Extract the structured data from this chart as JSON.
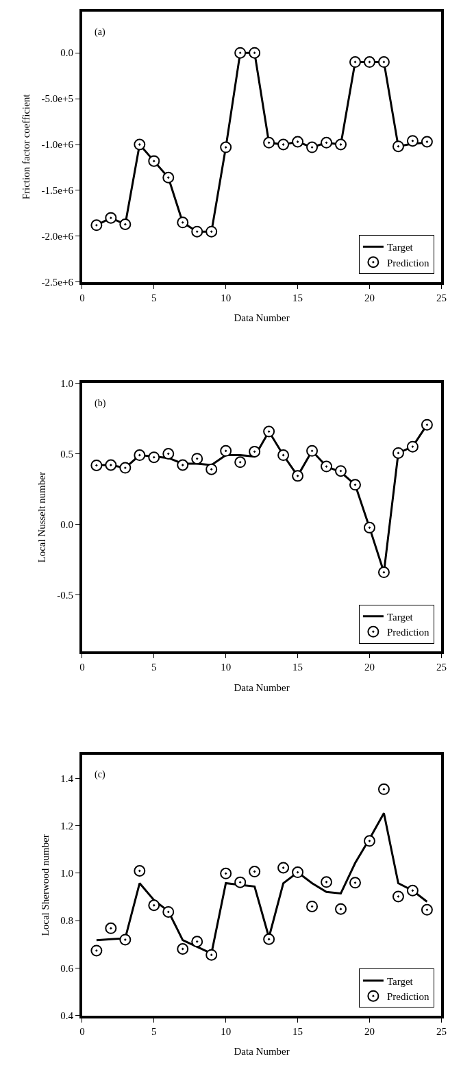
{
  "chart_data": [
    {
      "type": "line",
      "xlabel": "Data Number",
      "ylabel": "Friction factor coefficient",
      "annotations": [
        "(a)"
      ],
      "x": [
        1,
        2,
        3,
        4,
        5,
        6,
        7,
        8,
        9,
        10,
        11,
        12,
        13,
        14,
        15,
        16,
        17,
        18,
        19,
        20,
        21,
        22,
        23,
        24
      ],
      "series": [
        {
          "name": "Target",
          "color": "#000000",
          "marker": "none",
          "line_style": "solid",
          "values": [
            -1880000.0,
            -1800000.0,
            -1870000.0,
            -1000000.0,
            -1180000.0,
            -1360000.0,
            -1850000.0,
            -1950000.0,
            -1950000.0,
            -1030000.0,
            0,
            0,
            -980000.0,
            -1000000.0,
            -970000.0,
            -1030000.0,
            -980000.0,
            -1000000.0,
            -100000.0,
            -100000.0,
            -100000.0,
            -1020000.0,
            -990000.0,
            -980000.0
          ]
        },
        {
          "name": "Prediction",
          "type": "scatter",
          "color": "#000000",
          "marker": "circle",
          "values": [
            -1880000.0,
            -1800000.0,
            -1870000.0,
            -1000000.0,
            -1180000.0,
            -1360000.0,
            -1850000.0,
            -1950000.0,
            -1950000.0,
            -1030000.0,
            0,
            0,
            -980000.0,
            -1000000.0,
            -970000.0,
            -1030000.0,
            -980000.0,
            -1000000.0,
            -100000.0,
            -100000.0,
            -100000.0,
            -1020000.0,
            -960000.0,
            -970000.0
          ]
        }
      ],
      "xlim": [
        0,
        25
      ],
      "xticks": [
        0,
        5,
        10,
        15,
        20,
        25
      ],
      "ylim": [
        -2500000.0,
        450000.0
      ],
      "yticks": [
        {
          "value": -2500000.0,
          "label": "-2.5e+6"
        },
        {
          "value": -2000000.0,
          "label": "-2.0e+6"
        },
        {
          "value": -1500000.0,
          "label": "-1.5e+6"
        },
        {
          "value": -1000000.0,
          "label": "-1.0e+6"
        },
        {
          "value": -500000.0,
          "label": "-5.0e+5"
        },
        {
          "value": 0,
          "label": "0.0"
        }
      ],
      "grid": false,
      "legend": "bottom right"
    },
    {
      "type": "line",
      "xlabel": "Data Number",
      "ylabel": "Local Nusselt number",
      "annotations": [
        "(b)"
      ],
      "x": [
        1,
        2,
        3,
        4,
        5,
        6,
        7,
        8,
        9,
        10,
        11,
        12,
        13,
        14,
        15,
        16,
        17,
        18,
        19,
        20,
        21,
        22,
        23,
        24
      ],
      "series": [
        {
          "name": "Target",
          "color": "#000000",
          "marker": "none",
          "line_style": "solid",
          "values": [
            0.42,
            0.42,
            0.4,
            0.49,
            0.48,
            0.47,
            0.43,
            0.43,
            0.42,
            0.49,
            0.49,
            0.48,
            0.657,
            0.49,
            0.343,
            0.52,
            0.41,
            0.37,
            0.28,
            -0.023,
            -0.339,
            0.505,
            0.55,
            0.705
          ]
        },
        {
          "name": "Prediction",
          "type": "scatter",
          "color": "#000000",
          "marker": "circle",
          "values": [
            0.418,
            0.42,
            0.4,
            0.49,
            0.475,
            0.5,
            0.42,
            0.465,
            0.39,
            0.52,
            0.44,
            0.515,
            0.657,
            0.49,
            0.343,
            0.52,
            0.41,
            0.378,
            0.28,
            -0.023,
            -0.339,
            0.505,
            0.55,
            0.705
          ]
        }
      ],
      "xlim": [
        0,
        25
      ],
      "xticks": [
        0,
        5,
        10,
        15,
        20,
        25
      ],
      "ylim": [
        -0.9,
        1.0
      ],
      "yticks": [
        {
          "value": -0.5,
          "label": "-0.5"
        },
        {
          "value": 0,
          "label": "0.0"
        },
        {
          "value": 0.5,
          "label": "0.5"
        },
        {
          "value": 1.0,
          "label": "1.0"
        }
      ],
      "grid": false,
      "legend": "bottom right"
    },
    {
      "type": "line",
      "xlabel": "Data Number",
      "ylabel": "Local Sherwood number",
      "annotations": [
        "(c)"
      ],
      "x": [
        1,
        2,
        3,
        4,
        5,
        6,
        7,
        8,
        9,
        10,
        11,
        12,
        13,
        14,
        15,
        16,
        17,
        18,
        19,
        20,
        21,
        22,
        23,
        24
      ],
      "series": [
        {
          "name": "Target",
          "color": "#000000",
          "marker": "none",
          "line_style": "solid",
          "values": [
            0.718,
            0.722,
            0.726,
            0.958,
            0.887,
            0.84,
            0.718,
            0.69,
            0.662,
            0.958,
            0.951,
            0.944,
            0.73,
            0.958,
            1.004,
            0.958,
            0.921,
            0.915,
            1.043,
            1.145,
            1.253,
            0.958,
            0.927,
            0.88
          ]
        },
        {
          "name": "Prediction",
          "type": "scatter",
          "color": "#000000",
          "marker": "circle",
          "values": [
            0.674,
            0.768,
            0.72,
            1.01,
            0.865,
            0.837,
            0.681,
            0.712,
            0.656,
            0.999,
            0.962,
            1.007,
            0.722,
            1.023,
            1.004,
            0.86,
            0.963,
            0.849,
            0.96,
            1.136,
            1.354,
            0.902,
            0.927,
            0.846
          ]
        }
      ],
      "xlim": [
        0,
        25
      ],
      "xticks": [
        0,
        5,
        10,
        15,
        20,
        25
      ],
      "ylim": [
        0.4,
        1.5
      ],
      "yticks": [
        0.4,
        0.6,
        0.8,
        {
          "value": 1.0,
          "label": "1.0"
        },
        1.2,
        1.4
      ],
      "grid": false,
      "legend": "bottom right"
    }
  ]
}
